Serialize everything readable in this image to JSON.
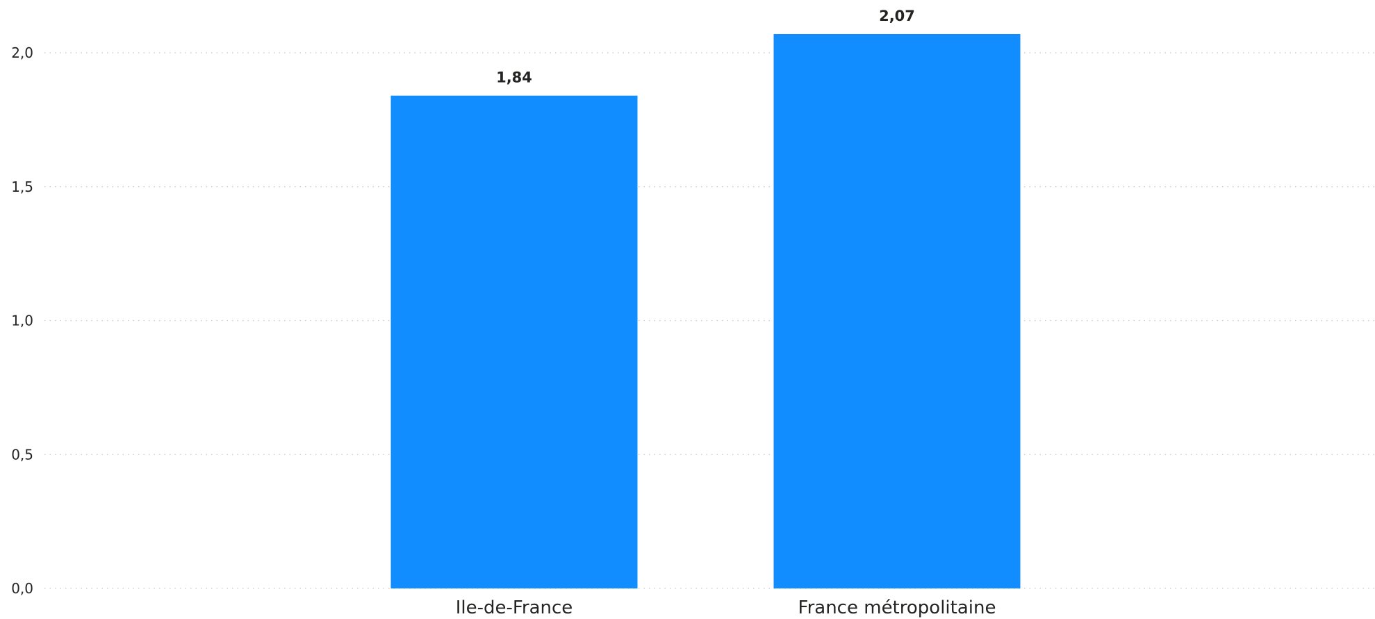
{
  "chart_data": {
    "type": "bar",
    "categories": [
      "Ile-de-France",
      "France métropolitaine"
    ],
    "values": [
      1.84,
      2.07
    ],
    "data_labels": [
      "1,84",
      "2,07"
    ],
    "y_ticks": [
      {
        "value": 0.0,
        "label": "0,0"
      },
      {
        "value": 0.5,
        "label": "0,5"
      },
      {
        "value": 1.0,
        "label": "1,0"
      },
      {
        "value": 1.5,
        "label": "1,5"
      },
      {
        "value": 2.0,
        "label": "2,0"
      }
    ],
    "ylim": [
      0,
      2.07
    ],
    "grid": true,
    "title": "",
    "xlabel": "",
    "ylabel": "",
    "bar_color": "#118DFF",
    "gridline_color": "#C8C6C4",
    "text_color": "#252423"
  }
}
